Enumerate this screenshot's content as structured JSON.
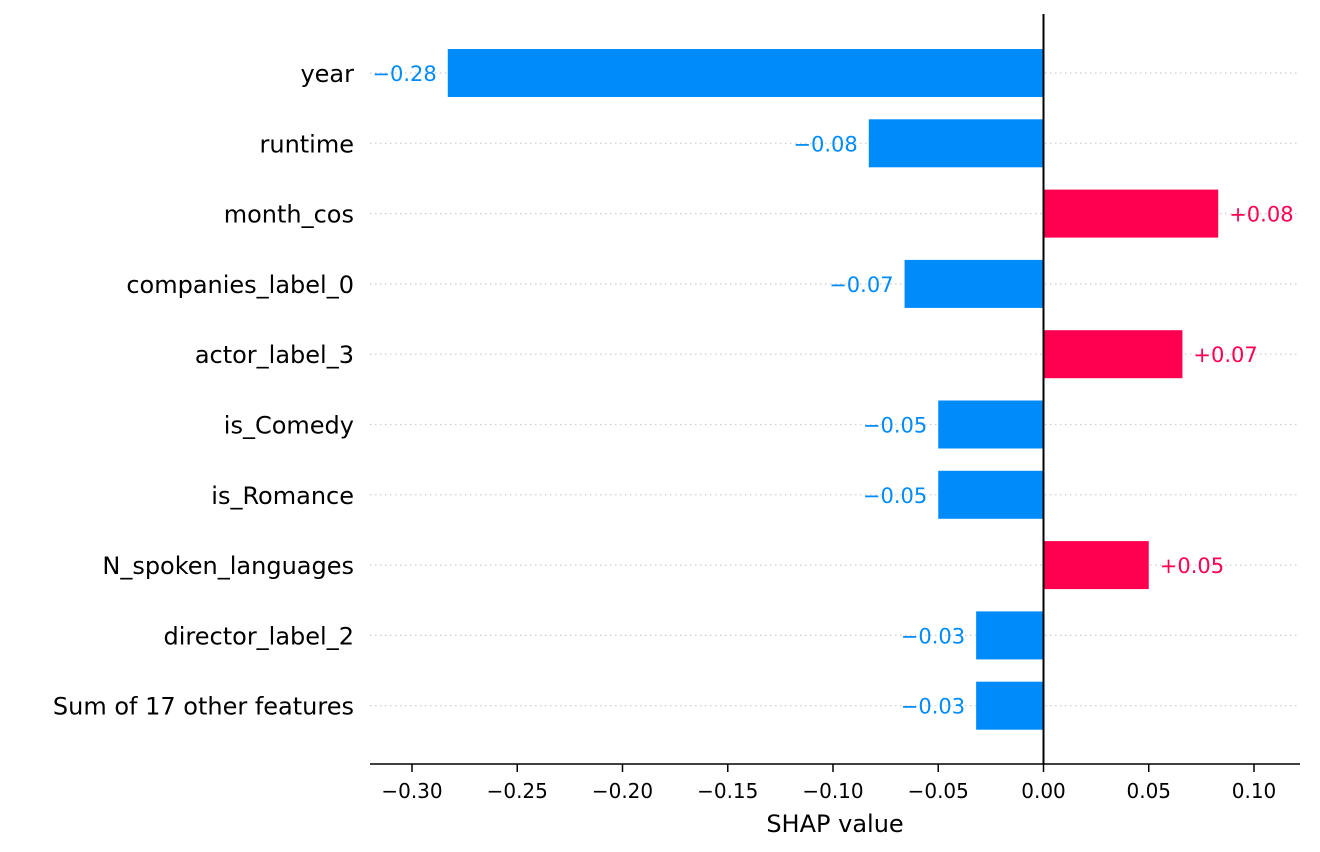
{
  "chart_data": {
    "type": "bar",
    "orientation": "horizontal",
    "xlabel": "SHAP value",
    "xlim": [
      -0.32,
      0.12
    ],
    "xticks": [
      -0.3,
      -0.25,
      -0.2,
      -0.15,
      -0.1,
      -0.05,
      0.0,
      0.05,
      0.1
    ],
    "xtick_labels": [
      "−0.30",
      "−0.25",
      "−0.20",
      "−0.15",
      "−0.10",
      "−0.05",
      "0.00",
      "0.05",
      "0.10"
    ],
    "categories": [
      "year",
      "runtime",
      "month_cos",
      "companies_label_0",
      "actor_label_3",
      "is_Comedy",
      "is_Romance",
      "N_spoken_languages",
      "director_label_2",
      "Sum of 17 other features"
    ],
    "values": [
      -0.283,
      -0.083,
      0.083,
      -0.066,
      0.066,
      -0.05,
      -0.05,
      0.05,
      -0.032,
      -0.032
    ],
    "value_labels": [
      "−0.28",
      "−0.08",
      "+0.08",
      "−0.07",
      "+0.07",
      "−0.05",
      "−0.05",
      "+0.05",
      "−0.03",
      "−0.03"
    ],
    "colors": {
      "positive": "#ff0051",
      "negative": "#008bfb",
      "gridline": "#cccccc",
      "axis": "#000000"
    },
    "grid": "horizontal dotted"
  }
}
